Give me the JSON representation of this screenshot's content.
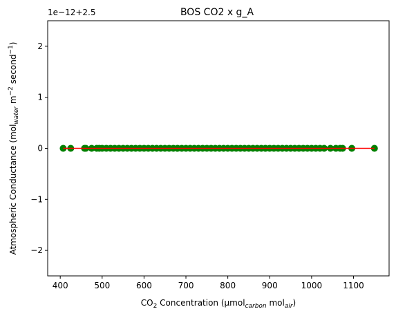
{
  "chart_data": {
    "type": "scatter",
    "title": "BOS CO2 x g_A",
    "xlabel": {
      "parts": [
        {
          "text": "CO",
          "style": "normal"
        },
        {
          "text": "2",
          "style": "sub"
        },
        {
          "text": " Concentration (μmol",
          "style": "normal"
        },
        {
          "text": "carbon",
          "style": "sub-italic"
        },
        {
          "text": " mol",
          "style": "normal"
        },
        {
          "text": "air",
          "style": "sub-italic"
        },
        {
          "text": ")",
          "style": "normal"
        }
      ]
    },
    "ylabel": {
      "parts": [
        {
          "text": "Atmospheric Conductance (mol",
          "style": "normal"
        },
        {
          "text": "water",
          "style": "sub-italic"
        },
        {
          "text": " m",
          "style": "normal"
        },
        {
          "text": "−2",
          "style": "sup"
        },
        {
          "text": " second",
          "style": "normal"
        },
        {
          "text": "−1",
          "style": "sup"
        },
        {
          "text": ")",
          "style": "normal"
        }
      ]
    },
    "y_offset_text": "1e−12+2.5",
    "xlim": [
      370,
      1185
    ],
    "ylim": [
      -2.5,
      2.5
    ],
    "xticks": [
      400,
      500,
      600,
      700,
      800,
      900,
      1000,
      1100
    ],
    "yticks": [
      -2,
      -1,
      0,
      1,
      2
    ],
    "ytick_labels": [
      "−2",
      "−1",
      "0",
      "1",
      "2"
    ],
    "grid": false,
    "legend": "none",
    "series": [
      {
        "kind": "scatter",
        "color": "#008000",
        "x": [
          407,
          425,
          458,
          461,
          475,
          487,
          493,
          500,
          510,
          520,
          530,
          540,
          550,
          560,
          570,
          580,
          590,
          600,
          610,
          620,
          630,
          640,
          650,
          660,
          670,
          680,
          690,
          700,
          710,
          720,
          730,
          740,
          750,
          760,
          770,
          780,
          790,
          800,
          810,
          820,
          830,
          840,
          850,
          860,
          870,
          880,
          890,
          900,
          910,
          920,
          930,
          940,
          950,
          960,
          970,
          980,
          990,
          1000,
          1010,
          1020,
          1030,
          1045,
          1058,
          1068,
          1074,
          1096,
          1150
        ],
        "y": [
          0,
          0,
          0,
          0,
          0,
          0,
          0,
          0,
          0,
          0,
          0,
          0,
          0,
          0,
          0,
          0,
          0,
          0,
          0,
          0,
          0,
          0,
          0,
          0,
          0,
          0,
          0,
          0,
          0,
          0,
          0,
          0,
          0,
          0,
          0,
          0,
          0,
          0,
          0,
          0,
          0,
          0,
          0,
          0,
          0,
          0,
          0,
          0,
          0,
          0,
          0,
          0,
          0,
          0,
          0,
          0,
          0,
          0,
          0,
          0,
          0,
          0,
          0,
          0,
          0,
          0,
          0
        ]
      },
      {
        "kind": "line",
        "color": "#ff0000",
        "x": [
          407,
          1150
        ],
        "y": [
          0,
          0
        ]
      }
    ]
  }
}
